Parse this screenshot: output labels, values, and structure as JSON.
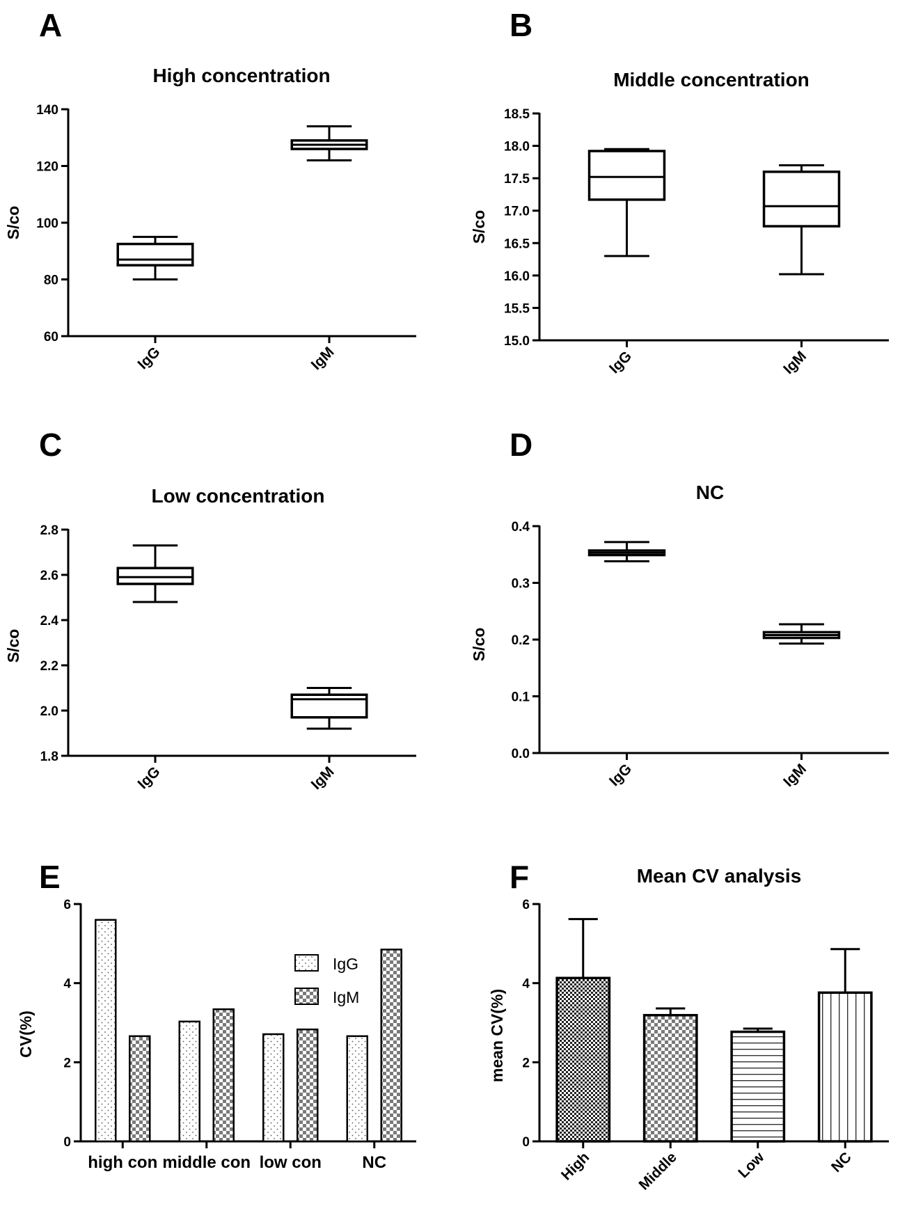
{
  "figure": {
    "panels": [
      {
        "letter": "A",
        "title": "High concentration",
        "ylabel": "S/co"
      },
      {
        "letter": "B",
        "title": "Middle concentration",
        "ylabel": "S/co"
      },
      {
        "letter": "C",
        "title": "Low concentration",
        "ylabel": "S/co"
      },
      {
        "letter": "D",
        "title": "NC",
        "ylabel": "S/co"
      },
      {
        "letter": "E",
        "title": "",
        "ylabel": "CV(%)"
      },
      {
        "letter": "F",
        "title": "Mean CV analysis",
        "ylabel": "mean CV(%)"
      }
    ]
  },
  "chart_data": [
    {
      "type": "box",
      "title": "High concentration",
      "xlabel": "",
      "ylabel": "S/co",
      "ylim": [
        60,
        140
      ],
      "yticks": [
        "60",
        "80",
        "100",
        "120",
        "140"
      ],
      "categories": [
        "IgG",
        "IgM"
      ],
      "boxes": [
        {
          "category": "IgG",
          "min": 80,
          "q1": 85,
          "median": 87,
          "q3": 92.5,
          "max": 95
        },
        {
          "category": "IgM",
          "min": 122,
          "q1": 126,
          "median": 127.5,
          "q3": 129,
          "max": 134
        }
      ]
    },
    {
      "type": "box",
      "title": "Middle concentration",
      "xlabel": "",
      "ylabel": "S/co",
      "ylim": [
        15.0,
        18.5
      ],
      "yticks": [
        "15.0",
        "15.5",
        "16.0",
        "16.5",
        "17.0",
        "17.5",
        "18.0",
        "18.5"
      ],
      "categories": [
        "IgG",
        "IgM"
      ],
      "boxes": [
        {
          "category": "IgG",
          "min": 16.3,
          "q1": 17.17,
          "median": 17.52,
          "q3": 17.92,
          "max": 17.95
        },
        {
          "category": "IgM",
          "min": 16.02,
          "q1": 16.76,
          "median": 17.07,
          "q3": 17.6,
          "max": 17.7
        }
      ]
    },
    {
      "type": "box",
      "title": "Low concentration",
      "xlabel": "",
      "ylabel": "S/co",
      "ylim": [
        1.8,
        2.8
      ],
      "yticks": [
        "1.8",
        "2.0",
        "2.2",
        "2.4",
        "2.6",
        "2.8"
      ],
      "categories": [
        "IgG",
        "IgM"
      ],
      "boxes": [
        {
          "category": "IgG",
          "min": 2.48,
          "q1": 2.56,
          "median": 2.59,
          "q3": 2.63,
          "max": 2.73
        },
        {
          "category": "IgM",
          "min": 1.92,
          "q1": 1.97,
          "median": 2.05,
          "q3": 2.07,
          "max": 2.1
        }
      ]
    },
    {
      "type": "box",
      "title": "NC",
      "xlabel": "",
      "ylabel": "S/co",
      "ylim": [
        0.0,
        0.4
      ],
      "yticks": [
        "0.0",
        "0.1",
        "0.2",
        "0.3",
        "0.4"
      ],
      "categories": [
        "IgG",
        "IgM"
      ],
      "boxes": [
        {
          "category": "IgG",
          "min": 0.338,
          "q1": 0.349,
          "median": 0.353,
          "q3": 0.357,
          "max": 0.372
        },
        {
          "category": "IgM",
          "min": 0.193,
          "q1": 0.203,
          "median": 0.208,
          "q3": 0.213,
          "max": 0.227
        }
      ]
    },
    {
      "type": "bar",
      "title": "",
      "xlabel": "",
      "ylabel": "CV(%)",
      "ylim": [
        0,
        6
      ],
      "yticks": [
        "0",
        "2",
        "4",
        "6"
      ],
      "categories": [
        "high con",
        "middle con",
        "low con",
        "NC"
      ],
      "series": [
        {
          "name": "IgG",
          "values": [
            5.6,
            3.03,
            2.71,
            2.66
          ],
          "pattern": "dots"
        },
        {
          "name": "IgM",
          "values": [
            2.66,
            3.34,
            2.83,
            4.85
          ],
          "pattern": "checker"
        }
      ],
      "legend": "top-right",
      "grid": false
    },
    {
      "type": "bar",
      "title": "Mean CV analysis",
      "xlabel": "",
      "ylabel": "mean CV(%)",
      "ylim": [
        0,
        6
      ],
      "yticks": [
        "0",
        "2",
        "4",
        "6"
      ],
      "categories": [
        "High",
        "Middle",
        "Low",
        "NC"
      ],
      "values": [
        4.13,
        3.19,
        2.77,
        3.76
      ],
      "error_upper": [
        5.62,
        3.36,
        2.85,
        4.86
      ],
      "patterns": [
        "fine-checker",
        "checker",
        "hlines",
        "vlines"
      ],
      "grid": false
    }
  ]
}
